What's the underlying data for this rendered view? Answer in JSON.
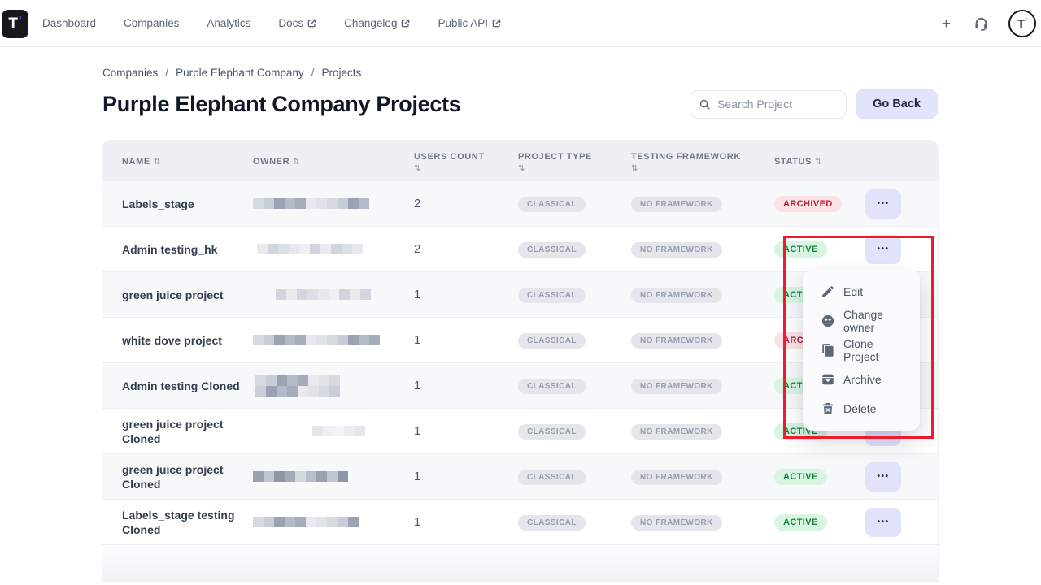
{
  "topbar": {
    "brand_letter": "T",
    "brand_mark": "'",
    "plus_label": "+",
    "nav": [
      {
        "label": "Dashboard",
        "external": false
      },
      {
        "label": "Companies",
        "external": false
      },
      {
        "label": "Analytics",
        "external": false
      },
      {
        "label": "Docs",
        "external": true
      },
      {
        "label": "Changelog",
        "external": true
      },
      {
        "label": "Public API",
        "external": true
      }
    ]
  },
  "breadcrumb": {
    "separator": "/",
    "items": [
      "Companies",
      "Purple Elephant Company",
      "Projects"
    ]
  },
  "header": {
    "title": "Purple Elephant Company Projects",
    "search_placeholder": "Search Project",
    "go_back_label": "Go Back"
  },
  "table": {
    "sort_icon": "⇅",
    "actions_icon": "•••",
    "columns": [
      {
        "label": "NAME",
        "stack_sort": false
      },
      {
        "label": "OWNER",
        "stack_sort": false
      },
      {
        "label": "USERS COUNT",
        "stack_sort": true
      },
      {
        "label": "PROJECT TYPE",
        "stack_sort": true
      },
      {
        "label": "TESTING FRAMEWORK",
        "stack_sort": true
      },
      {
        "label": "STATUS",
        "stack_sort": false
      }
    ],
    "rows": [
      {
        "name": "Labels_stage",
        "users_count": "2",
        "project_type": "CLASSICAL",
        "testing_framework": "NO FRAMEWORK",
        "status": "ARCHIVED",
        "owner_redacted": {
          "width": 155,
          "offset": 0,
          "tone": "medium",
          "rows": 1
        }
      },
      {
        "name": "Admin testing_hk",
        "users_count": "2",
        "project_type": "CLASSICAL",
        "testing_framework": "NO FRAMEWORK",
        "status": "ACTIVE",
        "owner_redacted": {
          "width": 135,
          "offset": 5,
          "tone": "light",
          "rows": 1
        }
      },
      {
        "name": "green juice project",
        "users_count": "1",
        "project_type": "CLASSICAL",
        "testing_framework": "NO FRAMEWORK",
        "status": "ACTIVE",
        "owner_redacted": {
          "width": 118,
          "offset": 28,
          "tone": "light",
          "rows": 1
        }
      },
      {
        "name": "white dove project",
        "users_count": "1",
        "project_type": "CLASSICAL",
        "testing_framework": "NO FRAMEWORK",
        "status": "ARCHIVED",
        "owner_redacted": {
          "width": 158,
          "offset": 0,
          "tone": "medium",
          "rows": 1
        }
      },
      {
        "name": "Admin testing Cloned",
        "users_count": "1",
        "project_type": "CLASSICAL",
        "testing_framework": "NO FRAMEWORK",
        "status": "ACTIVE",
        "owner_redacted": {
          "width": 115,
          "offset": 3,
          "tone": "medium",
          "rows": 2
        }
      },
      {
        "name": "green juice project Cloned",
        "users_count": "1",
        "project_type": "CLASSICAL",
        "testing_framework": "NO FRAMEWORK",
        "status": "ACTIVE",
        "owner_redacted": {
          "width": 70,
          "offset": 73,
          "tone": "faint",
          "rows": 1
        }
      },
      {
        "name": "green juice project Cloned",
        "users_count": "1",
        "project_type": "CLASSICAL",
        "testing_framework": "NO FRAMEWORK",
        "status": "ACTIVE",
        "owner_redacted": {
          "width": 120,
          "offset": 0,
          "tone": "dark",
          "rows": 1
        }
      },
      {
        "name": "Labels_stage testing Cloned",
        "users_count": "1",
        "project_type": "CLASSICAL",
        "testing_framework": "NO FRAMEWORK",
        "status": "ACTIVE",
        "owner_redacted": {
          "width": 133,
          "offset": 0,
          "tone": "medium",
          "rows": 1
        }
      }
    ]
  },
  "status_styles": {
    "ACTIVE": {
      "bg": "#d7f5e1",
      "fg": "#15813e"
    },
    "ARCHIVED": {
      "bg": "#fbe2e6",
      "fg": "#ba1c33"
    }
  },
  "type_badge_style": {
    "bg": "#e4e6eb",
    "fg": "#949daf"
  },
  "context_menu": {
    "items": [
      {
        "icon": "pencil-icon",
        "label": "Edit"
      },
      {
        "icon": "change-owner-icon",
        "label": "Change owner"
      },
      {
        "icon": "clone-icon",
        "label": "Clone Project"
      },
      {
        "icon": "archive-icon",
        "label": "Archive"
      },
      {
        "icon": "delete-icon",
        "label": "Delete"
      }
    ]
  },
  "annotation": {
    "color": "#ee1b2c"
  }
}
